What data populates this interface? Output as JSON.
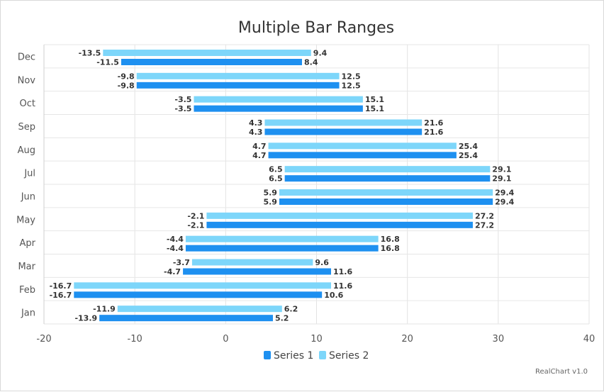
{
  "chart_data": {
    "type": "bar",
    "orientation": "horizontal",
    "range_bars": true,
    "title": "Multiple Bar Ranges",
    "categories": [
      "Jan",
      "Feb",
      "Mar",
      "Apr",
      "May",
      "Jun",
      "Jul",
      "Aug",
      "Sep",
      "Oct",
      "Nov",
      "Dec"
    ],
    "series": [
      {
        "name": "Series 1",
        "color": "#1e90f0",
        "low": [
          -13.9,
          -16.7,
          -4.7,
          -4.4,
          -2.1,
          5.9,
          6.5,
          4.7,
          4.3,
          -3.5,
          -9.8,
          -11.5
        ],
        "high": [
          5.2,
          10.6,
          11.6,
          16.8,
          27.2,
          29.4,
          29.1,
          25.4,
          21.6,
          15.1,
          12.5,
          8.4
        ]
      },
      {
        "name": "Series 2",
        "color": "#7dd6fa",
        "low": [
          -11.9,
          -16.7,
          -3.7,
          -4.4,
          -2.1,
          5.9,
          6.5,
          4.7,
          4.3,
          -3.5,
          -9.8,
          -13.5
        ],
        "high": [
          6.2,
          11.6,
          9.6,
          16.8,
          27.2,
          29.4,
          29.1,
          25.4,
          21.6,
          15.1,
          12.5,
          9.4
        ]
      }
    ],
    "xlim": [
      -20,
      40
    ],
    "xticks": [
      -20,
      -10,
      0,
      10,
      20,
      30,
      40
    ],
    "grid": true,
    "legend": "bottom-center",
    "credits": "RealChart v1.0"
  }
}
